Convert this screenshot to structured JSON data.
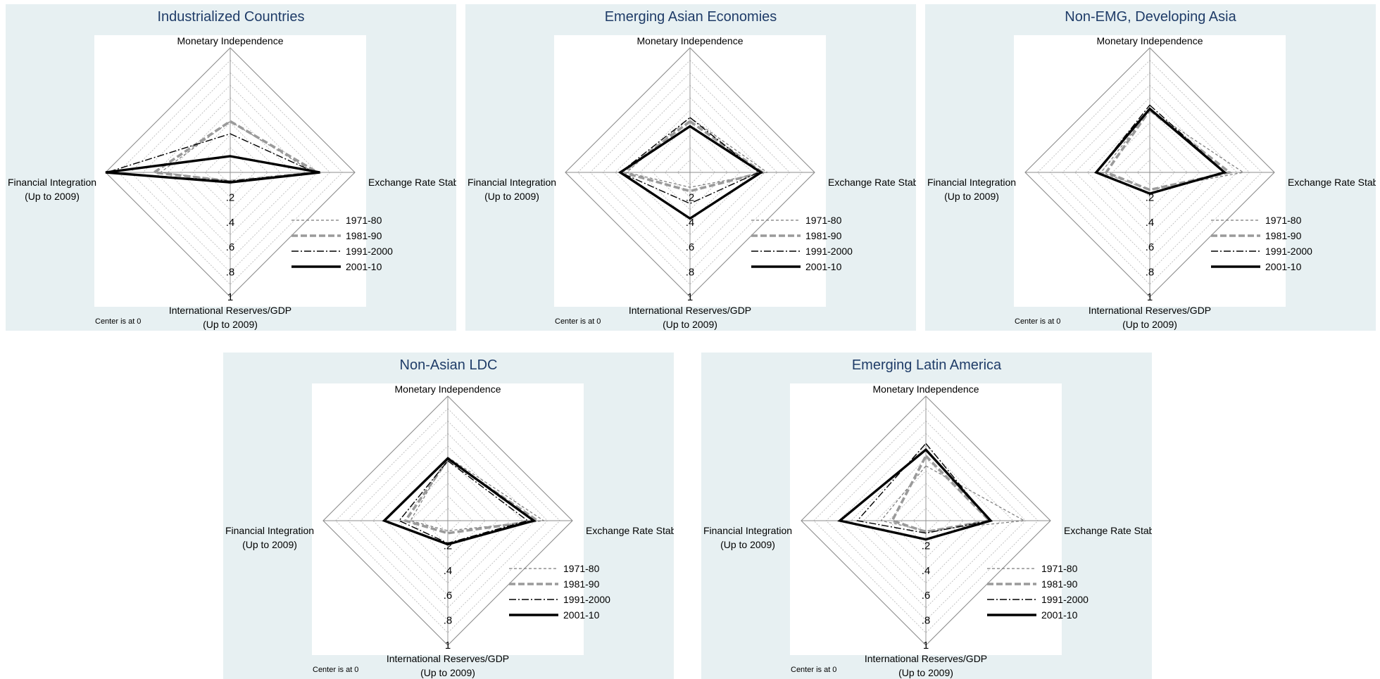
{
  "common": {
    "axes": {
      "top": "Monetary Independence",
      "right": "Exchange Rate Stability",
      "left_line1": "Financial Integration",
      "left_line2": "(Up to 2009)",
      "bottom_line1": "International Reserves/GDP",
      "bottom_line2": "(Up to 2009)"
    },
    "ticks": [
      ".2",
      ".4",
      ".6",
      ".8",
      "1"
    ],
    "center_note": "Center is at 0",
    "legend": [
      "1971-80",
      "1981-90",
      "1991-2000",
      "2001-10"
    ],
    "colors": {
      "panel_bg": "#e7f0f2",
      "plot_bg": "#ffffff",
      "title": "#1f3c68",
      "outer": "#8c8c8c",
      "grid": "#b4b4b4",
      "s1971": "#7a7a7a",
      "s1981": "#9a9a9a",
      "s1991": "#000000",
      "s2001": "#000000"
    }
  },
  "chart_data": [
    {
      "type": "radar",
      "title": "Industrialized Countries",
      "axes": [
        "Monetary Independence",
        "Exchange Rate Stability",
        "International Reserves/GDP (Up to 2009)",
        "Financial Integration (Up to 2009)"
      ],
      "range": [
        0,
        1
      ],
      "legend_position": "bottom-right",
      "series": [
        {
          "name": "1971-80",
          "values": [
            0.41,
            0.67,
            0.07,
            0.56
          ]
        },
        {
          "name": "1981-90",
          "values": [
            0.41,
            0.7,
            0.07,
            0.61
          ]
        },
        {
          "name": "1991-2000",
          "values": [
            0.31,
            0.68,
            0.07,
            0.99
          ]
        },
        {
          "name": "2001-10",
          "values": [
            0.13,
            0.72,
            0.08,
            1.0
          ]
        }
      ]
    },
    {
      "type": "radar",
      "title": "Emerging Asian Economies",
      "axes": [
        "Monetary Independence",
        "Exchange Rate Stability",
        "International Reserves/GDP (Up to 2009)",
        "Financial Integration (Up to 2009)"
      ],
      "range": [
        0,
        1
      ],
      "legend_position": "bottom-right",
      "series": [
        {
          "name": "1971-80",
          "values": [
            0.44,
            0.62,
            0.12,
            0.51
          ]
        },
        {
          "name": "1981-90",
          "values": [
            0.41,
            0.58,
            0.15,
            0.54
          ]
        },
        {
          "name": "1991-2000",
          "values": [
            0.44,
            0.55,
            0.25,
            0.56
          ]
        },
        {
          "name": "2001-10",
          "values": [
            0.37,
            0.57,
            0.37,
            0.56
          ]
        }
      ]
    },
    {
      "type": "radar",
      "title": "Non-EMG, Developing Asia",
      "axes": [
        "Monetary Independence",
        "Exchange Rate Stability",
        "International Reserves/GDP (Up to 2009)",
        "Financial Integration (Up to 2009)"
      ],
      "range": [
        0,
        1
      ],
      "legend_position": "bottom-right",
      "series": [
        {
          "name": "1971-80",
          "values": [
            0.5,
            0.75,
            0.14,
            0.39
          ]
        },
        {
          "name": "1981-90",
          "values": [
            0.5,
            0.64,
            0.14,
            0.35
          ]
        },
        {
          "name": "1991-2000",
          "values": [
            0.54,
            0.6,
            0.17,
            0.43
          ]
        },
        {
          "name": "2001-10",
          "values": [
            0.51,
            0.6,
            0.17,
            0.43
          ]
        }
      ]
    },
    {
      "type": "radar",
      "title": "Non-Asian LDC",
      "axes": [
        "Monetary Independence",
        "Exchange Rate Stability",
        "International Reserves/GDP (Up to 2009)",
        "Financial Integration (Up to 2009)"
      ],
      "range": [
        0,
        1
      ],
      "legend_position": "bottom-right",
      "series": [
        {
          "name": "1971-80",
          "values": [
            0.51,
            0.77,
            0.08,
            0.3
          ]
        },
        {
          "name": "1981-90",
          "values": [
            0.49,
            0.72,
            0.1,
            0.34
          ]
        },
        {
          "name": "1991-2000",
          "values": [
            0.48,
            0.64,
            0.18,
            0.39
          ]
        },
        {
          "name": "2001-10",
          "values": [
            0.5,
            0.69,
            0.19,
            0.51
          ]
        }
      ]
    },
    {
      "type": "radar",
      "title": "Emerging Latin America",
      "axes": [
        "Monetary Independence",
        "Exchange Rate Stability",
        "International Reserves/GDP (Up to 2009)",
        "Financial Integration (Up to 2009)"
      ],
      "range": [
        0,
        1
      ],
      "legend_position": "bottom-right",
      "series": [
        {
          "name": "1971-80",
          "values": [
            0.44,
            0.79,
            0.08,
            0.36
          ]
        },
        {
          "name": "1981-90",
          "values": [
            0.52,
            0.51,
            0.09,
            0.27
          ]
        },
        {
          "name": "1991-2000",
          "values": [
            0.62,
            0.51,
            0.1,
            0.55
          ]
        },
        {
          "name": "2001-10",
          "values": [
            0.57,
            0.52,
            0.15,
            0.69
          ]
        }
      ]
    }
  ]
}
